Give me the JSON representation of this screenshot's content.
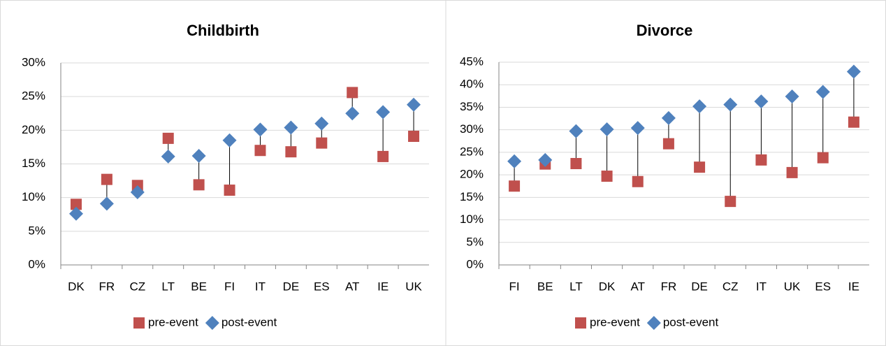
{
  "chart_data": [
    {
      "type": "dot",
      "title": "Childbirth",
      "categories": [
        "DK",
        "FR",
        "CZ",
        "LT",
        "BE",
        "FI",
        "IT",
        "DE",
        "ES",
        "AT",
        "IE",
        "UK"
      ],
      "series": [
        {
          "name": "pre-event",
          "color": "#c0504d",
          "marker": "square",
          "values": [
            9.0,
            12.7,
            11.8,
            18.8,
            11.9,
            11.1,
            17.0,
            16.8,
            18.1,
            25.6,
            16.1,
            19.1
          ]
        },
        {
          "name": "post-event",
          "color": "#4f81bd",
          "marker": "diamond",
          "values": [
            7.6,
            9.1,
            10.8,
            16.1,
            16.2,
            18.5,
            20.1,
            20.4,
            21.0,
            22.5,
            22.7,
            23.8
          ]
        }
      ],
      "ylim": [
        0,
        30
      ],
      "yticks": [
        {
          "value": 0,
          "label": "0%"
        },
        {
          "value": 5,
          "label": "5%"
        },
        {
          "value": 10,
          "label": "10%"
        },
        {
          "value": 15,
          "label": "15%"
        },
        {
          "value": 20,
          "label": "20%"
        },
        {
          "value": 25,
          "label": "25%"
        },
        {
          "value": 30,
          "label": "30%"
        }
      ],
      "grid": true,
      "legend": "bottom"
    },
    {
      "type": "dot",
      "title": "Divorce",
      "categories": [
        "FI",
        "BE",
        "LT",
        "DK",
        "AT",
        "FR",
        "DE",
        "CZ",
        "IT",
        "UK",
        "ES",
        "IE"
      ],
      "series": [
        {
          "name": "pre-event",
          "color": "#c0504d",
          "marker": "square",
          "values": [
            17.5,
            22.4,
            22.5,
            19.7,
            18.5,
            26.9,
            21.7,
            14.1,
            23.3,
            20.5,
            23.8,
            31.7
          ]
        },
        {
          "name": "post-event",
          "color": "#4f81bd",
          "marker": "diamond",
          "values": [
            23.0,
            23.3,
            29.7,
            30.1,
            30.4,
            32.6,
            35.2,
            35.6,
            36.3,
            37.4,
            38.4,
            42.9
          ]
        }
      ],
      "ylim": [
        0,
        45
      ],
      "yticks": [
        {
          "value": 0,
          "label": "0%"
        },
        {
          "value": 5,
          "label": "5%"
        },
        {
          "value": 10,
          "label": "10%"
        },
        {
          "value": 15,
          "label": "15%"
        },
        {
          "value": 20,
          "label": "20%"
        },
        {
          "value": 25,
          "label": "25%"
        },
        {
          "value": 30,
          "label": "30%"
        },
        {
          "value": 35,
          "label": "35%"
        },
        {
          "value": 40,
          "label": "40%"
        },
        {
          "value": 45,
          "label": "45%"
        }
      ],
      "grid": true,
      "legend": "bottom"
    }
  ]
}
